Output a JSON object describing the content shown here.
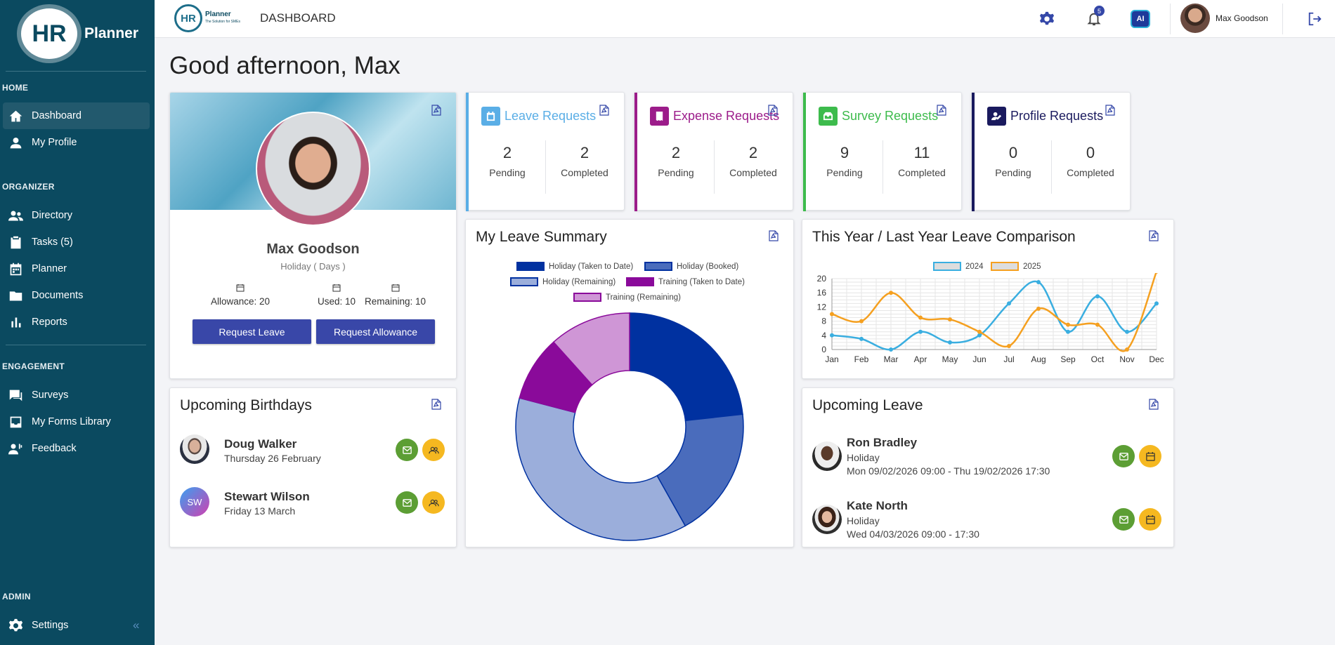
{
  "brand": {
    "logo_hr": "HR",
    "logo_name": "Planner",
    "tb_hr": "HR",
    "tb_name": "Planner",
    "tb_tagline": "The Solution for SMEs"
  },
  "topbar": {
    "title": "DASHBOARD",
    "notif_count": "5",
    "ai_label": "AI",
    "user_name": "Max Goodson"
  },
  "sidebar": {
    "home_label": "HOME",
    "organizer_label": "ORGANIZER",
    "engagement_label": "ENGAGEMENT",
    "admin_label": "ADMIN",
    "items": [
      {
        "label": "Dashboard",
        "icon": "home-icon"
      },
      {
        "label": "My Profile",
        "icon": "user-icon"
      },
      {
        "label": "Directory",
        "icon": "users-icon"
      },
      {
        "label": "Tasks (5)",
        "icon": "clipboard-icon"
      },
      {
        "label": "Planner",
        "icon": "calendar-icon"
      },
      {
        "label": "Documents",
        "icon": "folder-icon"
      },
      {
        "label": "Reports",
        "icon": "bar-chart-icon"
      },
      {
        "label": "Surveys",
        "icon": "survey-icon"
      },
      {
        "label": "My Forms Library",
        "icon": "inbox-icon"
      },
      {
        "label": "Feedback",
        "icon": "feedback-icon"
      },
      {
        "label": "Settings",
        "icon": "gear-icon"
      }
    ],
    "collapse": "«"
  },
  "greeting": "Good afternoon, Max",
  "profile": {
    "name": "Max Goodson",
    "unit": "Holiday ( Days )",
    "allowance": "Allowance: 20",
    "used": "Used: 10",
    "remaining": "Remaining: 10",
    "request_leave": "Request Leave",
    "request_allowance": "Request Allowance"
  },
  "requests": [
    {
      "title": "Leave Requests",
      "pending": "2",
      "completed": "2",
      "color": "#5aaee6"
    },
    {
      "title": "Expense Requests",
      "pending": "2",
      "completed": "2",
      "color": "#9c1c8a"
    },
    {
      "title": "Survey Requests",
      "pending": "9",
      "completed": "11",
      "color": "#3dbb4c"
    },
    {
      "title": "Profile Requests",
      "pending": "0",
      "completed": "0",
      "color": "#1a1a5e"
    }
  ],
  "labels": {
    "pending": "Pending",
    "completed": "Completed"
  },
  "leave_summary": {
    "title": "My Leave Summary"
  },
  "comparison": {
    "title": "This Year / Last Year Leave Comparison"
  },
  "birthdays": {
    "title": "Upcoming Birthdays",
    "people": [
      {
        "name": "Doug Walker",
        "date": "Thursday 26 February",
        "initials": ""
      },
      {
        "name": "Stewart Wilson",
        "date": "Friday 13 March",
        "initials": "SW"
      }
    ]
  },
  "upcoming_leave": {
    "title": "Upcoming Leave",
    "people": [
      {
        "name": "Ron Bradley",
        "type": "Holiday",
        "dates": "Mon 09/02/2026 09:00 - Thu 19/02/2026 17:30"
      },
      {
        "name": "Kate North",
        "type": "Holiday",
        "dates": "Wed 04/03/2026 09:00 - 17:30"
      }
    ]
  },
  "chart_data": [
    {
      "type": "pie",
      "title": "My Leave Summary",
      "categories": [
        "Holiday (Taken to Date)",
        "Holiday (Booked)",
        "Holiday (Remaining)",
        "Training (Taken to Date)",
        "Training (Remaining)"
      ],
      "values": [
        5,
        4,
        8,
        2,
        2.5
      ],
      "colors": [
        "#0031a0",
        "#4a6cbc",
        "#9baedb",
        "#8a0a9a",
        "#cf96d6"
      ]
    },
    {
      "type": "line",
      "title": "This Year / Last Year Leave Comparison",
      "categories": [
        "Jan",
        "Feb",
        "Mar",
        "Apr",
        "May",
        "Jun",
        "Jul",
        "Aug",
        "Sep",
        "Oct",
        "Nov",
        "Dec"
      ],
      "series": [
        {
          "name": "2024",
          "values": [
            4,
            3,
            0,
            5,
            2,
            4,
            13,
            19,
            5,
            15,
            5,
            13
          ],
          "color": "#3aaee0"
        },
        {
          "name": "2025",
          "values": [
            10,
            8,
            16,
            9,
            8.5,
            5,
            1,
            11.5,
            7,
            7,
            0,
            22
          ],
          "color": "#f5a020"
        }
      ],
      "ylim": [
        0,
        20
      ],
      "yticks": [
        0,
        4,
        8,
        12,
        16,
        20
      ],
      "grid": true,
      "legend": "top"
    }
  ]
}
